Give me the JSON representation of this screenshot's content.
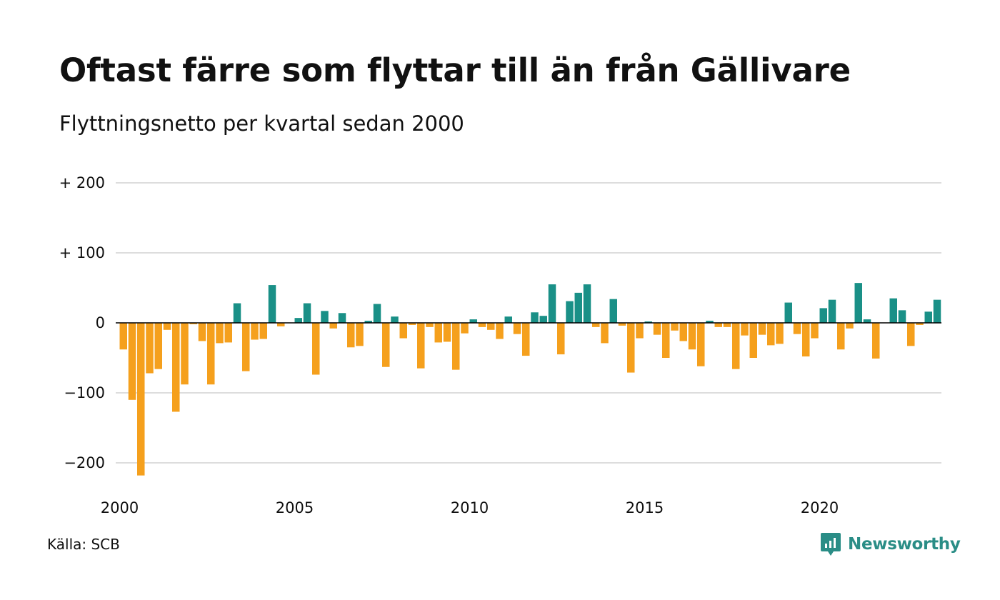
{
  "chart_data": {
    "type": "bar",
    "title": "Oftast färre som flyttar till än från Gällivare",
    "subtitle": "Flyttningsnetto per kvartal sedan 2000",
    "source": "Källa: SCB",
    "brand": "Newsworthy",
    "x_start": "2000-Q1",
    "x_ticks": [
      "2000",
      "2005",
      "2010",
      "2015",
      "2020"
    ],
    "y_ticks": [
      200,
      100,
      0,
      -100,
      -200
    ],
    "y_tick_labels": [
      "+ 200",
      "+ 100",
      "0",
      "−100",
      "−200"
    ],
    "ylim": [
      -220,
      200
    ],
    "grid": true,
    "colors": {
      "positive": "#1a9087",
      "negative": "#f5a01d",
      "grid": "#dddddd",
      "axis": "#000000",
      "brand": "#2a8d86"
    },
    "values": [
      -38,
      -110,
      -218,
      -72,
      -66,
      -10,
      -127,
      -88,
      -2,
      -26,
      -88,
      -29,
      -28,
      28,
      -69,
      -24,
      -23,
      54,
      -5,
      0,
      7,
      28,
      -74,
      17,
      -8,
      14,
      -35,
      -33,
      3,
      27,
      -63,
      9,
      -22,
      -3,
      -65,
      -6,
      -28,
      -27,
      -67,
      -15,
      5,
      -6,
      -10,
      -23,
      9,
      -16,
      -47,
      15,
      10,
      55,
      -45,
      31,
      43,
      55,
      -6,
      -29,
      34,
      -4,
      -71,
      -22,
      2,
      -17,
      -50,
      -11,
      -26,
      -38,
      -62,
      3,
      -6,
      -6,
      -66,
      -18,
      -50,
      -17,
      -32,
      -30,
      29,
      -16,
      -48,
      -22,
      21,
      33,
      -38,
      -8,
      57,
      5,
      -51,
      0,
      35,
      18,
      -33,
      -3,
      16,
      33
    ]
  }
}
